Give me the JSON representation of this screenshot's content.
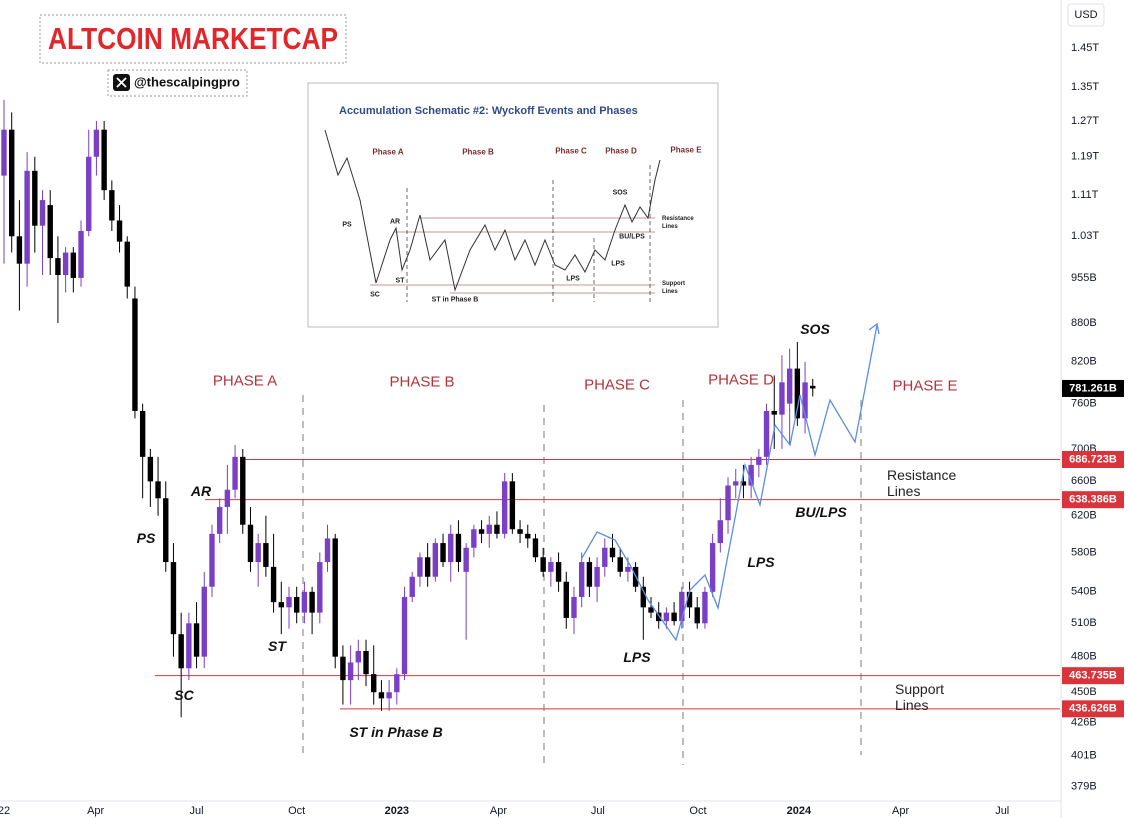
{
  "chart_data": {
    "type": "candlestick",
    "title": "ALTCOIN MARKETCAP",
    "subtitle": "@thescalpingpro",
    "currency": "USD",
    "x": [
      0,
      1,
      2,
      3,
      4,
      5,
      6,
      7,
      8,
      9,
      10,
      11,
      12,
      13,
      14,
      15,
      16,
      17,
      18,
      19,
      20,
      21,
      22,
      23,
      24,
      25,
      26,
      27,
      28,
      29,
      30,
      31,
      32,
      33,
      34,
      35,
      36,
      37,
      38,
      39,
      40,
      41,
      42,
      43,
      44,
      45,
      46,
      47,
      48,
      49,
      50,
      51,
      52,
      53,
      54,
      55,
      56,
      57,
      58,
      59,
      60,
      61,
      62,
      63,
      64,
      65,
      66,
      67,
      68,
      69,
      70,
      71,
      72,
      73,
      74,
      75,
      76,
      77,
      78,
      79,
      80,
      81,
      82,
      83,
      84,
      85,
      86,
      87,
      88,
      89,
      90,
      91,
      92,
      93,
      94,
      95,
      96,
      97,
      98,
      99,
      100,
      101,
      102,
      103,
      104,
      105
    ],
    "open": [
      1150,
      1250,
      1030,
      980,
      1160,
      1050,
      1090,
      990,
      960,
      1000,
      955,
      1040,
      1190,
      1250,
      1120,
      1060,
      1020,
      920,
      750,
      690,
      660,
      640,
      570,
      500,
      470,
      510,
      480,
      545,
      600,
      630,
      650,
      690,
      610,
      570,
      590,
      565,
      530,
      525,
      535,
      520,
      540,
      520,
      570,
      595,
      480,
      460,
      475,
      485,
      465,
      450,
      445,
      450,
      465,
      535,
      555,
      575,
      555,
      590,
      570,
      600,
      560,
      585,
      605,
      600,
      610,
      600,
      660,
      605,
      600,
      595,
      575,
      560,
      570,
      550,
      515,
      535,
      570,
      545,
      565,
      585,
      575,
      560,
      565,
      545,
      525,
      520,
      512,
      520,
      512,
      540,
      525,
      510,
      540,
      590,
      615,
      655,
      660,
      655,
      680,
      690,
      750,
      745,
      760,
      810,
      740,
      785
    ],
    "high": [
      1320,
      1290,
      1100,
      1200,
      1190,
      1120,
      1120,
      1030,
      1010,
      1010,
      1060,
      1250,
      1270,
      1270,
      1140,
      1090,
      1030,
      940,
      760,
      700,
      690,
      660,
      590,
      520,
      520,
      530,
      560,
      610,
      640,
      680,
      705,
      700,
      630,
      600,
      620,
      600,
      550,
      545,
      545,
      550,
      545,
      580,
      610,
      600,
      490,
      490,
      495,
      495,
      490,
      460,
      460,
      470,
      545,
      560,
      580,
      590,
      595,
      600,
      610,
      615,
      590,
      610,
      615,
      620,
      625,
      670,
      670,
      615,
      610,
      600,
      585,
      575,
      580,
      560,
      545,
      580,
      575,
      575,
      595,
      600,
      585,
      575,
      570,
      555,
      535,
      530,
      525,
      530,
      545,
      550,
      535,
      545,
      600,
      640,
      665,
      675,
      680,
      690,
      700,
      760,
      800,
      830,
      840,
      850,
      820,
      795
    ],
    "low": [
      980,
      1000,
      900,
      940,
      1000,
      960,
      960,
      880,
      930,
      930,
      940,
      1030,
      1150,
      1100,
      1040,
      1000,
      920,
      740,
      640,
      630,
      620,
      560,
      480,
      430,
      460,
      470,
      470,
      535,
      590,
      600,
      640,
      600,
      560,
      545,
      555,
      520,
      500,
      505,
      510,
      510,
      500,
      510,
      560,
      470,
      440,
      440,
      460,
      455,
      440,
      435,
      435,
      440,
      460,
      530,
      545,
      545,
      550,
      565,
      550,
      560,
      495,
      575,
      590,
      585,
      595,
      595,
      600,
      590,
      585,
      570,
      555,
      545,
      540,
      505,
      500,
      525,
      535,
      530,
      555,
      570,
      555,
      550,
      540,
      495,
      515,
      505,
      505,
      508,
      505,
      515,
      505,
      505,
      535,
      580,
      600,
      640,
      640,
      640,
      665,
      680,
      700,
      700,
      705,
      730,
      720,
      770
    ],
    "close": [
      1250,
      1030,
      980,
      1160,
      1050,
      1100,
      990,
      960,
      1000,
      955,
      1040,
      1190,
      1250,
      1120,
      1060,
      1020,
      940,
      750,
      690,
      660,
      640,
      570,
      500,
      470,
      510,
      480,
      545,
      600,
      630,
      650,
      690,
      610,
      570,
      590,
      565,
      530,
      525,
      535,
      520,
      540,
      520,
      570,
      595,
      480,
      460,
      475,
      485,
      465,
      450,
      445,
      450,
      465,
      535,
      555,
      575,
      555,
      590,
      570,
      600,
      570,
      585,
      605,
      600,
      610,
      600,
      660,
      605,
      600,
      595,
      575,
      560,
      570,
      550,
      515,
      535,
      570,
      545,
      565,
      585,
      575,
      560,
      565,
      545,
      525,
      520,
      512,
      520,
      512,
      540,
      525,
      510,
      540,
      590,
      615,
      655,
      660,
      655,
      680,
      690,
      750,
      745,
      790,
      810,
      740,
      790,
      781.261
    ],
    "up_color": "#7b3fc6",
    "down_color": "#000000",
    "xlim": [
      -0.52,
      137.1
    ],
    "xticks": [
      {
        "value": 0,
        "label": "22"
      },
      {
        "value": 11.9,
        "label": "Apr"
      },
      {
        "value": 25,
        "label": "Jul"
      },
      {
        "value": 38,
        "label": "Oct"
      },
      {
        "value": 51,
        "label": "2023"
      },
      {
        "value": 64.2,
        "label": "Apr"
      },
      {
        "value": 77.1,
        "label": "Jul"
      },
      {
        "value": 90.1,
        "label": "Oct"
      },
      {
        "value": 103.2,
        "label": "2024"
      },
      {
        "value": 116.4,
        "label": "Apr"
      },
      {
        "value": 129.6,
        "label": "Jul"
      }
    ],
    "ylim": [
      370,
      1582
    ],
    "log_scale": true,
    "grid": false,
    "yticks": [
      {
        "value": 1450,
        "label": "1.45T"
      },
      {
        "value": 1350,
        "label": "1.35T"
      },
      {
        "value": 1270,
        "label": "1.27T"
      },
      {
        "value": 1190,
        "label": "1.19T"
      },
      {
        "value": 1110,
        "label": "1.11T"
      },
      {
        "value": 1030,
        "label": "1.03T"
      },
      {
        "value": 955,
        "label": "955B"
      },
      {
        "value": 880,
        "label": "880B"
      },
      {
        "value": 820,
        "label": "820B"
      },
      {
        "value": 760,
        "label": "760B"
      },
      {
        "value": 700,
        "label": "700B"
      },
      {
        "value": 660,
        "label": "660B"
      },
      {
        "value": 620,
        "label": "620B"
      },
      {
        "value": 580,
        "label": "580B"
      },
      {
        "value": 540,
        "label": "540B"
      },
      {
        "value": 510,
        "label": "510B"
      },
      {
        "value": 480,
        "label": "480B"
      },
      {
        "value": 450,
        "label": "450B"
      },
      {
        "value": 426,
        "label": "426B"
      },
      {
        "value": 401,
        "label": "401B"
      },
      {
        "value": 379,
        "label": "379B"
      }
    ],
    "price_lines": [
      {
        "value": 686.723,
        "label": "686.723B"
      },
      {
        "value": 638.386,
        "label": "638.386B"
      },
      {
        "value": 463.735,
        "label": "463.735B"
      },
      {
        "value": 436.626,
        "label": "436.626B"
      }
    ],
    "price_line_color": "#d9343b",
    "last_price": {
      "value": 781.261,
      "label": "781.261B"
    },
    "annotations": [
      "PHASE A",
      "PHASE B",
      "PHASE C",
      "PHASE D",
      "PHASE E",
      "PS",
      "AR",
      "SC",
      "ST",
      "ST in Phase B",
      "LPS",
      "LPS",
      "BU/LPS",
      "SOS",
      "Resistance Lines",
      "Support Lines"
    ]
  },
  "inset": {
    "title": "Accumulation Schematic #2: Wyckoff Events and Phases",
    "phases": [
      "Phase A",
      "Phase B",
      "Phase C",
      "Phase D",
      "Phase E"
    ],
    "labels": [
      "PS",
      "AR",
      "SC",
      "ST",
      "ST in Phase B",
      "SOS",
      "BU/LPS",
      "LPS",
      "LPS",
      "Resistance Lines",
      "Support Lines"
    ]
  }
}
